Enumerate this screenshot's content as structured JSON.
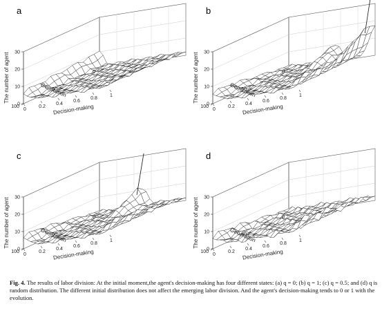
{
  "figure": {
    "caption_label": "Fig. 4.",
    "caption_text": "The results of labor division: At the initial moment,the agent's decision-making has four different states: (a) q = 0; (b) q = 1; (c) q = 0.5; and (d) q is random distribution. The different initial distribution does not affect the emerging labor division. And the agent's decision-making tends to 0 or 1 with the evolution."
  },
  "chart_data": [
    {
      "type": "surface",
      "panel": "a",
      "zlabel": "The number of agent",
      "xlabel": "Decision-making",
      "ylabel": "Generation",
      "z_ticks": [
        "0",
        "10",
        "20",
        "30"
      ],
      "x_ticks": [
        "0",
        "0.2",
        "0.4",
        "0.6",
        "0.8",
        "1"
      ],
      "y_ticks": [
        "100",
        "50",
        "0"
      ],
      "zlim": [
        0,
        30
      ],
      "xlim": [
        0,
        1
      ],
      "ylim": [
        0,
        100
      ],
      "initial_q": 0
    },
    {
      "type": "surface",
      "panel": "b",
      "zlabel": "The number of agent",
      "xlabel": "Decision-making",
      "ylabel": "Generation",
      "z_ticks": [
        "0",
        "10",
        "20",
        "30"
      ],
      "x_ticks": [
        "0",
        "0.2",
        "0.4",
        "0.6",
        "0.8",
        "1"
      ],
      "y_ticks": [
        "100",
        "50",
        "0"
      ],
      "zlim": [
        0,
        30
      ],
      "xlim": [
        0,
        1
      ],
      "ylim": [
        0,
        100
      ],
      "initial_q": 1
    },
    {
      "type": "surface",
      "panel": "c",
      "zlabel": "The number of agent",
      "xlabel": "Decision-making",
      "ylabel": "Generation",
      "z_ticks": [
        "0",
        "10",
        "20",
        "30"
      ],
      "x_ticks": [
        "0",
        "0.2",
        "0.4",
        "0.6",
        "0.8",
        "1"
      ],
      "y_ticks": [
        "100",
        "50",
        "0"
      ],
      "zlim": [
        0,
        30
      ],
      "xlim": [
        0,
        1
      ],
      "ylim": [
        0,
        100
      ],
      "initial_q": 0.5
    },
    {
      "type": "surface",
      "panel": "d",
      "zlabel": "The number of agent",
      "xlabel": "Decision-making",
      "ylabel": "Generation",
      "z_ticks": [
        "0",
        "10",
        "20",
        "30"
      ],
      "x_ticks": [
        "0",
        "0.2",
        "0.4",
        "0.6",
        "0.8",
        "1"
      ],
      "y_ticks": [
        "100",
        "50",
        "0"
      ],
      "zlim": [
        0,
        30
      ],
      "xlim": [
        0,
        1
      ],
      "ylim": [
        0,
        100
      ],
      "initial_q": "random"
    }
  ]
}
